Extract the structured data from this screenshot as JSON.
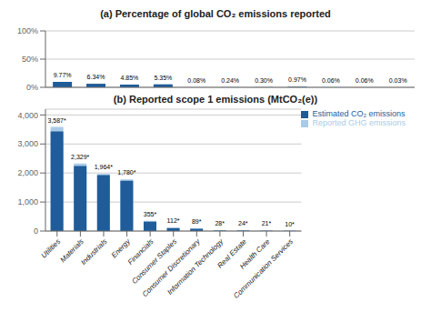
{
  "chart_data": [
    {
      "type": "bar",
      "title": "(a) Percentage of global CO₂ emissions reported",
      "categories": [
        "Utilities",
        "Materials",
        "Industrials",
        "Energy",
        "Financials",
        "Consumer Staples",
        "Consumer Discretionary",
        "Information Technology",
        "Real Estate",
        "Health Care",
        "Communication Services"
      ],
      "values": [
        9.77,
        6.34,
        4.85,
        5.35,
        0.08,
        0.24,
        0.3,
        0.97,
        0.06,
        0.06,
        0.03
      ],
      "value_labels": [
        "9.77%",
        "6.34%",
        "4.85%",
        "5.35%",
        "0.08%",
        "0.24%",
        "0.30%",
        "0.97%",
        "0.06%",
        "0.06%",
        "0.03%"
      ],
      "data_labels": true,
      "color": "#1F5C99",
      "ylim": [
        0,
        100
      ],
      "yticks": [
        {
          "value": 0,
          "label": "0%"
        },
        {
          "value": 50,
          "label": "50%"
        },
        {
          "value": 100,
          "label": "100%"
        }
      ],
      "grid": true,
      "tick_labels": "y"
    },
    {
      "type": "bar",
      "title": "(b) Reported scope 1 emissions (MtCO₂(e))",
      "categories": [
        "Utilities",
        "Materials",
        "Industrials",
        "Energy",
        "Financials",
        "Consumer Staples",
        "Consumer Discretionary",
        "Information Technology",
        "Real Estate",
        "Health Care",
        "Communication Services"
      ],
      "series": [
        {
          "name": "Reported GHG emissions",
          "color": "#AACBE8",
          "values": [
            3587,
            2329,
            1964,
            1780,
            355,
            112,
            89,
            28,
            24,
            21,
            10
          ],
          "value_labels": [
            "3,587*",
            "2,329*",
            "1,964*",
            "1,780*",
            "355*",
            "112*",
            "89*",
            "28*",
            "24*",
            "21*",
            "10*"
          ],
          "data_labels": true
        },
        {
          "name": "Estimated CO₂ emissions",
          "color": "#1F5C99",
          "values": [
            3430,
            2240,
            1930,
            1730,
            320,
            100,
            78,
            18,
            12,
            10,
            5
          ]
        }
      ],
      "ylim": [
        0,
        4200
      ],
      "yticks": [
        0,
        {
          "value": 1000,
          "label": "1,000"
        },
        {
          "value": 2000,
          "label": "2,000"
        },
        {
          "value": 3000,
          "label": "3,000"
        },
        {
          "value": 4000,
          "label": "4,000"
        }
      ],
      "grid": true,
      "legend": "upper right"
    }
  ]
}
